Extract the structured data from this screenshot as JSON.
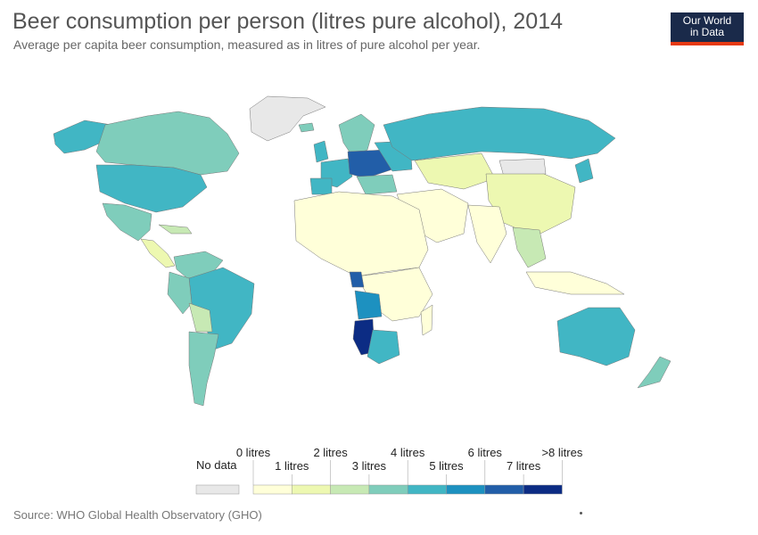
{
  "header": {
    "title": "Beer consumption per person (litres pure alcohol), 2014",
    "subtitle": "Average per capita beer consumption, measured as in litres of pure alcohol per year."
  },
  "logo": {
    "line1": "Our World",
    "line2": "in Data",
    "bg": "#1a2a4a",
    "accent": "#e63912"
  },
  "legend": {
    "no_data_label": "No data",
    "no_data_color": "#e8e8e8",
    "colors": [
      "#ffffd9",
      "#edf8b1",
      "#c7e9b4",
      "#7fcdbb",
      "#41b6c4",
      "#1d91c0",
      "#225ea8",
      "#0c2c84"
    ],
    "top_labels": [
      "0 litres",
      "2 litres",
      "4 litres",
      "6 litres",
      ">8 litres"
    ],
    "bottom_labels": [
      "1 litres",
      "3 litres",
      "5 litres",
      "7 litres"
    ]
  },
  "footer": {
    "source": "Source: WHO Global Health Observatory (GHO)"
  }
}
